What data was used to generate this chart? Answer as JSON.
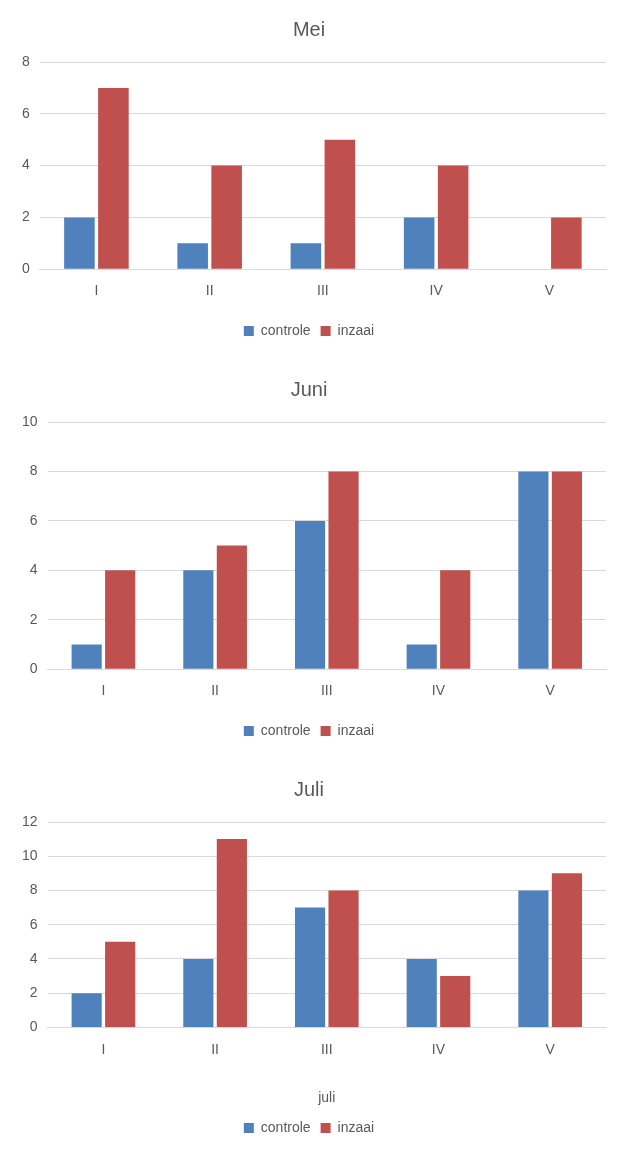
{
  "chart_data": [
    {
      "type": "bar",
      "title": "Mei",
      "categories": [
        "I",
        "II",
        "III",
        "IV",
        "V"
      ],
      "series": [
        {
          "name": "controle",
          "color": "#4f81bd",
          "values": [
            2,
            1,
            1,
            2,
            0
          ]
        },
        {
          "name": "inzaai",
          "color": "#c0504d",
          "values": [
            7,
            4,
            5,
            4,
            2
          ]
        }
      ],
      "ylim": [
        0,
        8
      ],
      "yticks": [
        0,
        2,
        4,
        6,
        8
      ],
      "grid": "y",
      "legend": "bottom"
    },
    {
      "type": "bar",
      "title": "Juni",
      "categories": [
        "I",
        "II",
        "III",
        "IV",
        "V"
      ],
      "series": [
        {
          "name": "controle",
          "color": "#4f81bd",
          "values": [
            1,
            4,
            6,
            1,
            8
          ]
        },
        {
          "name": "inzaai",
          "color": "#c0504d",
          "values": [
            4,
            5,
            8,
            4,
            8
          ]
        }
      ],
      "ylim": [
        0,
        10
      ],
      "yticks": [
        0,
        2,
        4,
        6,
        8,
        10
      ],
      "grid": "y",
      "legend": "bottom"
    },
    {
      "type": "bar",
      "title": "Juli",
      "xlabel": "juli",
      "categories": [
        "I",
        "II",
        "III",
        "IV",
        "V"
      ],
      "series": [
        {
          "name": "controle",
          "color": "#4f81bd",
          "values": [
            2,
            4,
            7,
            4,
            8
          ]
        },
        {
          "name": "inzaai",
          "color": "#c0504d",
          "values": [
            5,
            11,
            8,
            3,
            9
          ]
        }
      ],
      "ylim": [
        0,
        12
      ],
      "yticks": [
        0,
        2,
        4,
        6,
        8,
        10,
        12
      ],
      "grid": "y",
      "legend": "bottom"
    }
  ]
}
